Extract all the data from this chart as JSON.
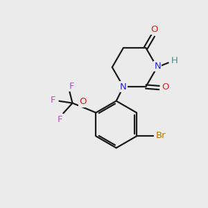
{
  "background_color": "#ebebeb",
  "bond_color": "#1a1a1a",
  "bond_width": 1.6,
  "N_color": "#2222cc",
  "O_color": "#dd2222",
  "H_color": "#4a8888",
  "F_color": "#cc44cc",
  "Br_color": "#bb7700",
  "fig_width": 3.0,
  "fig_height": 3.0,
  "dpi": 100,
  "xlim": [
    0,
    10
  ],
  "ylim": [
    0,
    10
  ]
}
